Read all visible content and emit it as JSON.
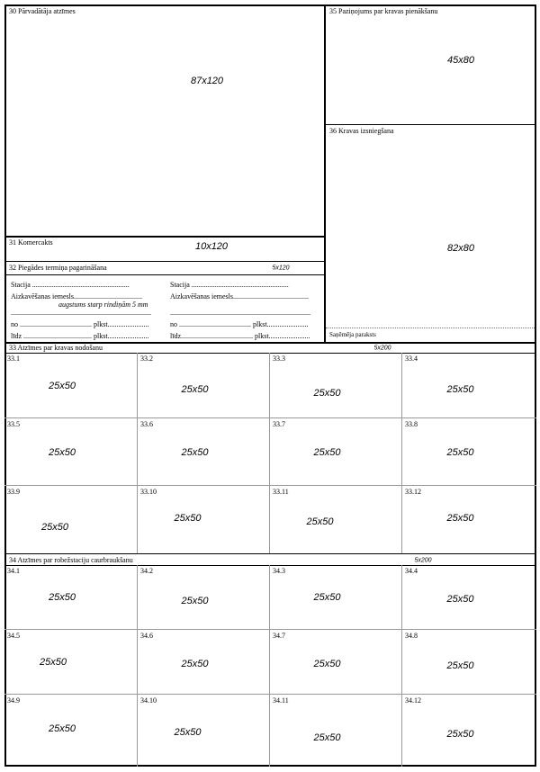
{
  "box30": {
    "label": "30 Pārvadātāja atzīmes",
    "size": "87x120"
  },
  "box31": {
    "label": "31 Komercakts",
    "size": "10x120"
  },
  "box32": {
    "label": "32 Piegādes termiņa pagarināšana",
    "size": "5x120",
    "left": {
      "stacija": "Stacija ......................................................",
      "iemesls": "Aizkavēšanas iemesls......................................",
      "note": "augstums starp rindiņām 5 mm",
      "blank": "..............................................................................",
      "no": "no ........................................ plkst.......................",
      "lidz": "līdz ...................................... plkst......................."
    },
    "right": {
      "stacija": "Stacija  ......................................................",
      "iemesls": "Aizkavēšanas iemesls..........................................",
      "blank": "..............................................................................",
      "no": "no ........................................ plkst.......................",
      "lidz": "līdz........................................ plkst......................."
    }
  },
  "box35": {
    "label": "35 Paziņojums par kravas pienākšanu",
    "size": "45x80"
  },
  "box36": {
    "label": "36 Kravas izsniegšana",
    "size": "82x80",
    "signature": "Saņēmēja paraksts"
  },
  "section33": {
    "label": "33 Atzīmes par kravas nodošanu",
    "size": "5x200",
    "cells": [
      {
        "num": "33.1",
        "size": "25x50"
      },
      {
        "num": "33.2",
        "size": "25x50"
      },
      {
        "num": "33.3",
        "size": "25x50"
      },
      {
        "num": "33.4",
        "size": "25x50"
      },
      {
        "num": "33.5",
        "size": "25x50"
      },
      {
        "num": "33.6",
        "size": "25x50"
      },
      {
        "num": "33.7",
        "size": "25x50"
      },
      {
        "num": "33.8",
        "size": "25x50"
      },
      {
        "num": "33.9",
        "size": "25x50"
      },
      {
        "num": "33.10",
        "size": "25x50"
      },
      {
        "num": "33.11",
        "size": "25x50"
      },
      {
        "num": "33.12",
        "size": "25x50"
      }
    ]
  },
  "section34": {
    "label": "34 Atzīmes par robežstaciju caurbraukšanu",
    "size": "5x200",
    "cells": [
      {
        "num": "34.1",
        "size": "25x50"
      },
      {
        "num": "34.2",
        "size": "25x50"
      },
      {
        "num": "34.3",
        "size": "25x50"
      },
      {
        "num": "34.4",
        "size": "25x50"
      },
      {
        "num": "34.5",
        "size": "25x50"
      },
      {
        "num": "34.6",
        "size": "25x50"
      },
      {
        "num": "34.7",
        "size": "25x50"
      },
      {
        "num": "34.8",
        "size": "25x50"
      },
      {
        "num": "34.9",
        "size": "25x50"
      },
      {
        "num": "34.10",
        "size": "25x50"
      },
      {
        "num": "34.11",
        "size": "25x50"
      },
      {
        "num": "34.12",
        "size": "25x50"
      }
    ]
  }
}
